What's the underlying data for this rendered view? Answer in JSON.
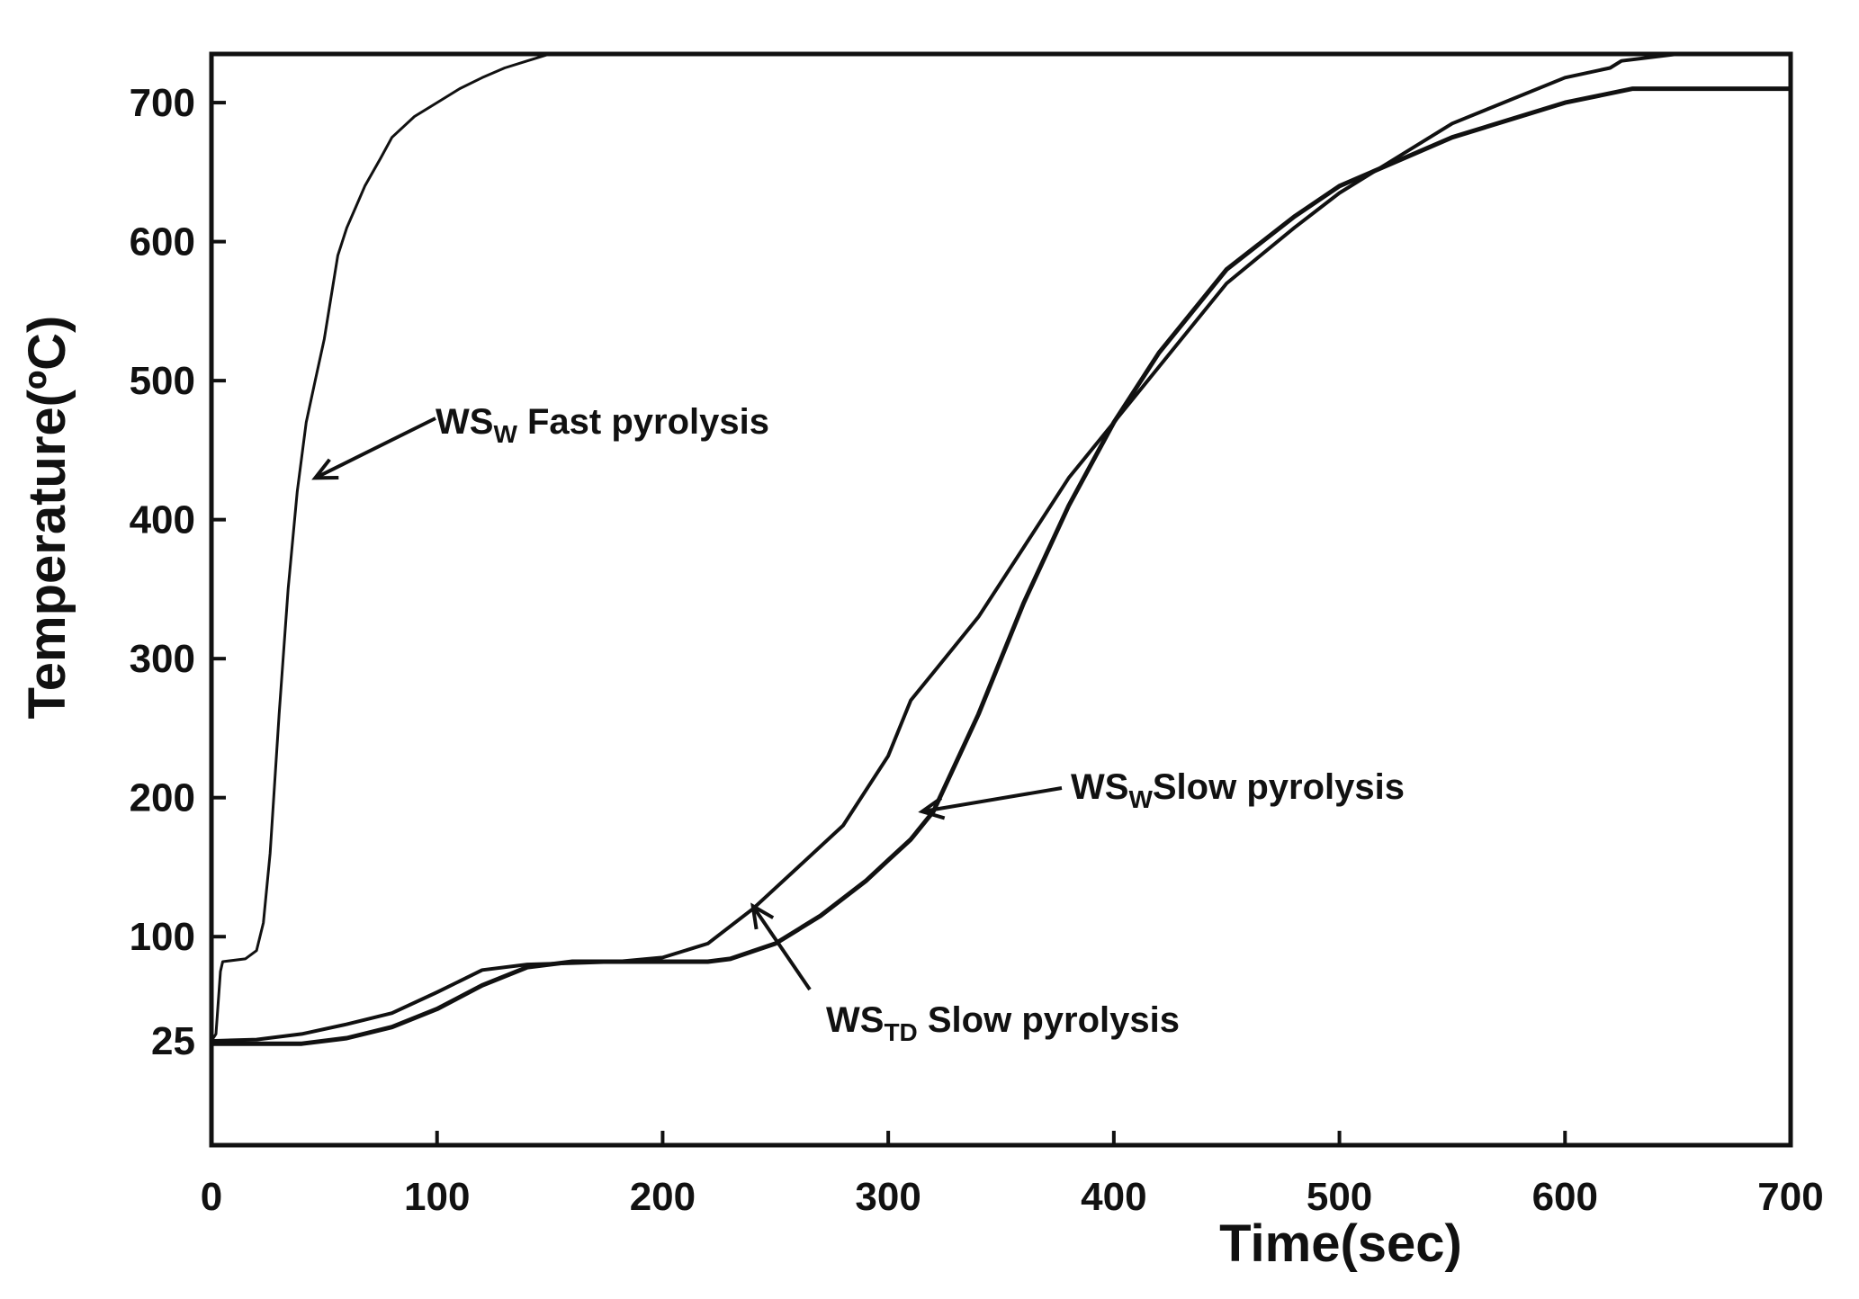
{
  "chart_data": {
    "type": "line",
    "title": "",
    "xlabel": "Time(sec)",
    "ylabel": "Temperature(ºC)",
    "xlim": [
      0,
      700
    ],
    "ylim": [
      -50,
      735
    ],
    "grid": false,
    "legend": "none",
    "x_ticks": [
      {
        "value": 0,
        "label": "0"
      },
      {
        "value": 100,
        "label": "100"
      },
      {
        "value": 200,
        "label": "200"
      },
      {
        "value": 300,
        "label": "300"
      },
      {
        "value": 400,
        "label": "400"
      },
      {
        "value": 500,
        "label": "500"
      },
      {
        "value": 600,
        "label": "600"
      },
      {
        "value": 700,
        "label": "700"
      }
    ],
    "y_ticks": [
      {
        "value": 25,
        "label": "25"
      },
      {
        "value": 100,
        "label": "100"
      },
      {
        "value": 200,
        "label": "200"
      },
      {
        "value": 300,
        "label": "300"
      },
      {
        "value": 400,
        "label": "400"
      },
      {
        "value": 500,
        "label": "500"
      },
      {
        "value": 600,
        "label": "600"
      },
      {
        "value": 700,
        "label": "700"
      }
    ],
    "series": [
      {
        "name": "WSW Fast pyrolysis",
        "stroke_width": 3,
        "x": [
          0,
          2,
          4,
          5,
          15,
          20,
          23,
          26,
          30,
          34,
          38,
          42,
          46,
          50,
          53,
          56,
          60,
          64,
          68,
          75,
          80,
          90,
          100,
          110,
          120,
          130,
          140,
          150
        ],
        "y": [
          25,
          30,
          75,
          82,
          84,
          90,
          110,
          160,
          260,
          350,
          420,
          470,
          500,
          530,
          560,
          590,
          610,
          625,
          640,
          660,
          675,
          690,
          700,
          710,
          718,
          725,
          730,
          735
        ]
      },
      {
        "name": "WSW Slow pyrolysis",
        "stroke_width": 5,
        "x": [
          0,
          20,
          40,
          60,
          80,
          100,
          120,
          140,
          160,
          180,
          200,
          220,
          230,
          250,
          270,
          290,
          300,
          310,
          320,
          340,
          360,
          380,
          400,
          420,
          450,
          480,
          500,
          550,
          600,
          630,
          660,
          680,
          690,
          700
        ],
        "y": [
          23,
          23,
          23,
          27,
          35,
          48,
          65,
          78,
          82,
          82,
          82,
          82,
          84,
          95,
          115,
          140,
          155,
          170,
          190,
          260,
          340,
          410,
          470,
          520,
          580,
          618,
          640,
          675,
          700,
          710,
          710,
          710,
          710,
          710
        ]
      },
      {
        "name": "WSTD Slow pyrolysis",
        "stroke_width": 4,
        "x": [
          0,
          20,
          40,
          60,
          80,
          100,
          110,
          120,
          140,
          160,
          180,
          200,
          220,
          240,
          260,
          280,
          300,
          310,
          320,
          340,
          360,
          380,
          400,
          420,
          450,
          480,
          500,
          550,
          600,
          620,
          625,
          650,
          700
        ],
        "y": [
          25,
          26,
          30,
          37,
          45,
          60,
          68,
          76,
          80,
          81,
          82,
          85,
          95,
          120,
          150,
          180,
          230,
          270,
          290,
          330,
          380,
          430,
          470,
          510,
          570,
          610,
          635,
          685,
          718,
          725,
          730,
          735,
          735
        ]
      }
    ],
    "annotations": [
      {
        "text_main": "WS",
        "text_sub": "W",
        "text_rest": " Fast pyrolysis",
        "arrow_to": {
          "x": 46,
          "y": 430
        }
      },
      {
        "text_main": "WS",
        "text_sub": "W",
        "text_rest": "Slow pyrolysis",
        "arrow_to": {
          "x": 315,
          "y": 190
        }
      },
      {
        "text_main": "WS",
        "text_sub": "TD",
        "text_rest": " Slow pyrolysis",
        "arrow_to": {
          "x": 240,
          "y": 122
        }
      }
    ]
  }
}
